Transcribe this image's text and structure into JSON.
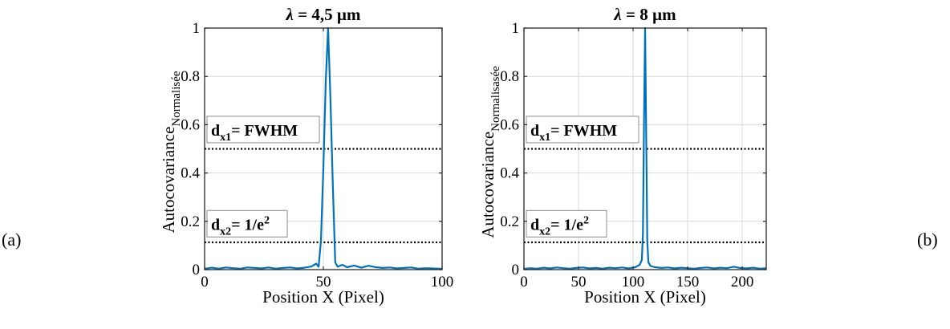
{
  "panel_labels": {
    "left": "(a)",
    "right": "(b)"
  },
  "chart_data": [
    {
      "type": "line",
      "title": "λ = 4,5 µm",
      "xlabel": "Position X (Pixel)",
      "ylabel": "Autocovariance",
      "ylabel_sub": "Normalisée",
      "xlim": [
        0,
        100
      ],
      "ylim": [
        0,
        1
      ],
      "xticks": [
        0,
        50,
        100
      ],
      "yticks": [
        0,
        0.2,
        0.4,
        0.6,
        0.8,
        1
      ],
      "xtick_labels": [
        "0",
        "50",
        "100"
      ],
      "ytick_labels": [
        "0",
        "0.2",
        "0.4",
        "0.6",
        "0.8",
        "1"
      ],
      "grid": true,
      "series_color": "#0072BD",
      "series": [
        {
          "x": [
            0,
            3,
            6,
            9,
            12,
            15,
            18,
            21,
            24,
            27,
            30,
            33,
            36,
            39,
            42,
            45,
            47,
            48,
            49,
            50,
            51,
            52,
            53,
            54,
            55,
            56,
            58,
            60,
            63,
            66,
            69,
            72,
            75,
            78,
            81,
            84,
            87,
            90,
            93,
            96,
            99,
            101
          ],
          "y": [
            0.003,
            0.008,
            0.004,
            0.009,
            0.006,
            0.004,
            0.009,
            0.007,
            0.005,
            0.009,
            0.004,
            0.007,
            0.009,
            0.005,
            0.008,
            0.013,
            0.025,
            0.012,
            0.12,
            0.42,
            0.78,
            1.0,
            0.7,
            0.35,
            0.03,
            0.012,
            0.02,
            0.01,
            0.017,
            0.008,
            0.016,
            0.01,
            0.007,
            0.009,
            0.005,
            0.007,
            0.009,
            0.004,
            0.006,
            0.005,
            0.004,
            0.003
          ]
        }
      ],
      "hlines": [
        {
          "y": 0.5,
          "label_main": "d",
          "label_sub": "x1",
          "label_rest": "= FWHM",
          "label_y": 0.575
        },
        {
          "y": 0.113,
          "label_main": "d",
          "label_sub": "x2",
          "label_rest": "= 1/e",
          "label_sup": "2",
          "label_y": 0.185
        }
      ]
    },
    {
      "type": "line",
      "title": "λ = 8 µm",
      "xlabel": "Position X (Pixel)",
      "ylabel": "Autocovariance",
      "ylabel_sub": "Normalisasée",
      "xlim": [
        0,
        222
      ],
      "ylim": [
        0,
        1
      ],
      "xticks": [
        0,
        50,
        100,
        150,
        200
      ],
      "yticks": [
        0,
        0.2,
        0.4,
        0.6,
        0.8,
        1
      ],
      "xtick_labels": [
        "0",
        "50",
        "100",
        "150",
        "200"
      ],
      "ytick_labels": [
        "0",
        "0.2",
        "0.4",
        "0.6",
        "0.8",
        "1"
      ],
      "grid": true,
      "series_color": "#0072BD",
      "series": [
        {
          "x": [
            0,
            6,
            12,
            18,
            24,
            30,
            36,
            42,
            48,
            54,
            60,
            66,
            72,
            78,
            84,
            90,
            96,
            102,
            106,
            108,
            109,
            110,
            111,
            112,
            113,
            114,
            116,
            120,
            126,
            132,
            138,
            144,
            150,
            156,
            162,
            168,
            174,
            180,
            186,
            192,
            198,
            204,
            210,
            216,
            222
          ],
          "y": [
            0.003,
            0.006,
            0.004,
            0.008,
            0.005,
            0.009,
            0.006,
            0.004,
            0.007,
            0.009,
            0.005,
            0.007,
            0.004,
            0.008,
            0.006,
            0.009,
            0.005,
            0.01,
            0.02,
            0.04,
            0.15,
            0.6,
            1.0,
            0.55,
            0.12,
            0.03,
            0.015,
            0.01,
            0.007,
            0.009,
            0.005,
            0.008,
            0.006,
            0.004,
            0.007,
            0.009,
            0.005,
            0.008,
            0.006,
            0.012,
            0.007,
            0.005,
            0.008,
            0.004,
            0.006
          ]
        }
      ],
      "hlines": [
        {
          "y": 0.5,
          "label_main": "d",
          "label_sub": "x1",
          "label_rest": "= FWHM",
          "label_y": 0.575
        },
        {
          "y": 0.113,
          "label_main": "d",
          "label_sub": "x2",
          "label_rest": "= 1/e",
          "label_sup": "2",
          "label_y": 0.185
        }
      ]
    }
  ]
}
